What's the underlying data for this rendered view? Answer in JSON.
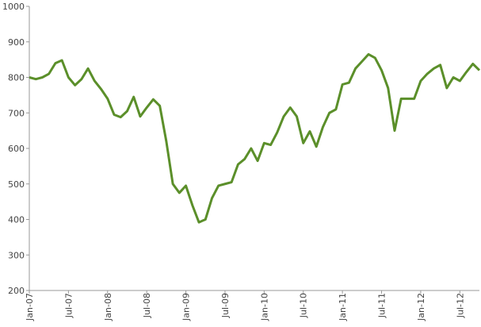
{
  "chart_data": {
    "type": "line",
    "x": [
      "2007-01",
      "2007-02",
      "2007-03",
      "2007-04",
      "2007-05",
      "2007-06",
      "2007-07",
      "2007-08",
      "2007-09",
      "2007-10",
      "2007-11",
      "2007-12",
      "2008-01",
      "2008-02",
      "2008-03",
      "2008-04",
      "2008-05",
      "2008-06",
      "2008-07",
      "2008-08",
      "2008-09",
      "2008-10",
      "2008-11",
      "2008-12",
      "2009-01",
      "2009-02",
      "2009-03",
      "2009-04",
      "2009-05",
      "2009-06",
      "2009-07",
      "2009-08",
      "2009-09",
      "2009-10",
      "2009-11",
      "2009-12",
      "2010-01",
      "2010-02",
      "2010-03",
      "2010-04",
      "2010-05",
      "2010-06",
      "2010-07",
      "2010-08",
      "2010-09",
      "2010-10",
      "2010-11",
      "2010-12",
      "2011-01",
      "2011-02",
      "2011-03",
      "2011-04",
      "2011-05",
      "2011-06",
      "2011-07",
      "2011-08",
      "2011-09",
      "2011-10",
      "2011-11",
      "2011-12",
      "2012-01",
      "2012-02",
      "2012-03",
      "2012-04",
      "2012-05",
      "2012-06",
      "2012-07",
      "2012-08",
      "2012-09",
      "2012-10"
    ],
    "series": [
      {
        "color": "#5b8f2a",
        "values": [
          800,
          795,
          800,
          810,
          840,
          848,
          800,
          778,
          795,
          825,
          790,
          767,
          740,
          695,
          688,
          705,
          745,
          690,
          715,
          738,
          720,
          620,
          500,
          475,
          495,
          440,
          392,
          400,
          460,
          495,
          500,
          505,
          555,
          570,
          600,
          565,
          615,
          610,
          645,
          690,
          715,
          690,
          615,
          648,
          605,
          660,
          700,
          710,
          780,
          785,
          825,
          845,
          865,
          855,
          820,
          770,
          650,
          740,
          740,
          740,
          790,
          810,
          825,
          835,
          770,
          800,
          790,
          815,
          838,
          820
        ]
      }
    ],
    "xlim": [
      "2007-01",
      "2012-10"
    ],
    "xticks": [
      {
        "value": "2007-01",
        "label": "Jan-07"
      },
      {
        "value": "2007-07",
        "label": "Jul-07"
      },
      {
        "value": "2008-01",
        "label": "Jan-08"
      },
      {
        "value": "2008-07",
        "label": "Jul-08"
      },
      {
        "value": "2009-01",
        "label": "Jan-09"
      },
      {
        "value": "2009-07",
        "label": "Jul-09"
      },
      {
        "value": "2010-01",
        "label": "Jan-10"
      },
      {
        "value": "2010-07",
        "label": "Jul-10"
      },
      {
        "value": "2011-01",
        "label": "Jan-11"
      },
      {
        "value": "2011-07",
        "label": "Jul-11"
      },
      {
        "value": "2012-01",
        "label": "Jan-12"
      },
      {
        "value": "2012-07",
        "label": "Jul-12"
      }
    ],
    "ylim": [
      200,
      1000
    ],
    "yticks": [
      200,
      300,
      400,
      500,
      600,
      700,
      800,
      900,
      1000
    ]
  }
}
